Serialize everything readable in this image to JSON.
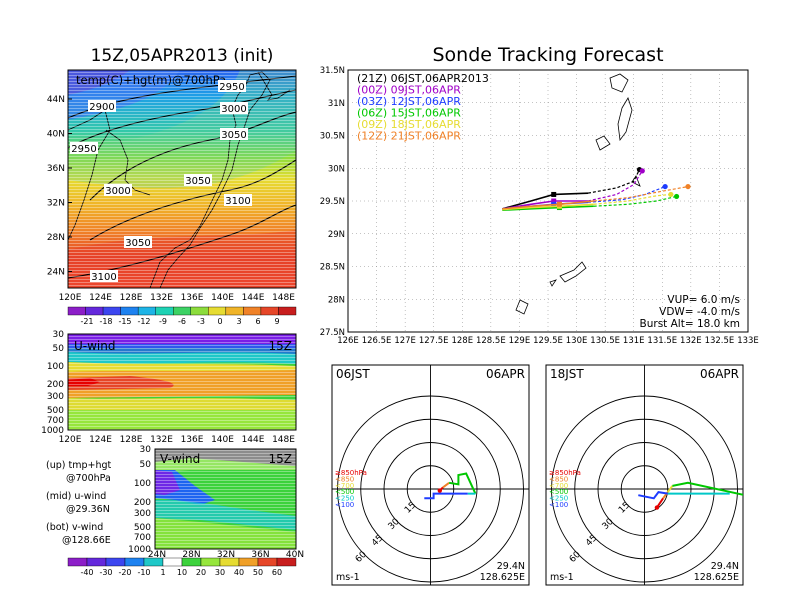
{
  "main_title": "Sonde Tracking Forecast",
  "init_title": "15Z,05APR2013 (init)",
  "colors": {
    "purple": "#a000c8",
    "blue": "#1e3cff",
    "green": "#00c800",
    "yellow": "#e6dc32",
    "orange": "#f08228",
    "black": "#000000",
    "cyan": "#00c8c8",
    "red": "#e60000"
  },
  "map700": {
    "label": "temp(C)+hgt(m)@700hPa",
    "lat_ticks": [
      "44N",
      "40N",
      "36N",
      "32N",
      "28N",
      "24N"
    ],
    "lon_ticks": [
      "120E",
      "124E",
      "128E",
      "132E",
      "136E",
      "140E",
      "144E",
      "148E"
    ],
    "contour_labels": [
      "2900",
      "2950",
      "3000",
      "3050",
      "2950",
      "3000",
      "3050",
      "3100",
      "3050",
      "3100"
    ],
    "colorbar": [
      "-21",
      "-18",
      "-15",
      "-12",
      "-9",
      "-6",
      "-3",
      "0",
      "3",
      "6",
      "9"
    ]
  },
  "uwind": {
    "label": "U-wind",
    "time": "15Z",
    "y_ticks": [
      "30",
      "50",
      "100",
      "200",
      "300",
      "500",
      "700",
      "1000"
    ],
    "x_ticks": [
      "120E",
      "124E",
      "128E",
      "132E",
      "136E",
      "140E",
      "144E",
      "148E"
    ]
  },
  "vwind": {
    "label": "V-wind",
    "time": "15Z",
    "y_ticks": [
      "30",
      "50",
      "100",
      "200",
      "300",
      "500",
      "700",
      "1000"
    ],
    "x_ticks": [
      "24N",
      "28N",
      "32N",
      "36N",
      "40N"
    ],
    "colorbar": [
      "-40",
      "-30",
      "-20",
      "-10",
      "1",
      "10",
      "20",
      "30",
      "40",
      "50",
      "60"
    ]
  },
  "notes": [
    {
      "l1": "(up) tmp+hgt",
      "l2": "@700hPa"
    },
    {
      "l1": "(mid) u-wind",
      "l2": "@29.36N"
    },
    {
      "l1": "(bot) v-wind",
      "l2": "@128.66E"
    }
  ],
  "chart_data": {
    "type": "line",
    "title": "Sonde Tracking Forecast",
    "xlim": [
      126,
      133
    ],
    "ylim": [
      27.5,
      31.5
    ],
    "x_ticks": [
      "126E",
      "126.5E",
      "127E",
      "127.5E",
      "128E",
      "128.5E",
      "129E",
      "129.5E",
      "130E",
      "130.5E",
      "131E",
      "131.5E",
      "132E",
      "132.5E",
      "133E"
    ],
    "y_ticks": [
      "27.5N",
      "28N",
      "28.5N",
      "29N",
      "29.5N",
      "30N",
      "30.5N",
      "31N",
      "31.5N"
    ],
    "series": [
      {
        "name": "(21Z)  06JST,06APR2013",
        "color": "#000000",
        "lon": [
          128.7,
          129.2,
          129.6,
          130.2,
          130.7,
          131.0,
          131.1
        ],
        "lat": [
          29.38,
          29.5,
          29.6,
          29.62,
          29.7,
          29.8,
          29.98
        ]
      },
      {
        "name": "(00Z)  09JST,06APR",
        "color": "#a000c8",
        "lon": [
          128.7,
          129.2,
          129.6,
          130.2,
          130.7,
          131.0,
          131.15
        ],
        "lat": [
          29.38,
          29.45,
          29.5,
          29.5,
          29.6,
          29.75,
          29.96
        ]
      },
      {
        "name": "(03Z)  12JST,06APR",
        "color": "#1e3cff",
        "lon": [
          128.7,
          129.2,
          129.6,
          130.2,
          130.8,
          131.2,
          131.55
        ],
        "lat": [
          29.38,
          29.42,
          29.45,
          29.48,
          29.52,
          29.6,
          29.72
        ]
      },
      {
        "name": "(06Z)  15JST,06APR",
        "color": "#00c800",
        "lon": [
          128.7,
          129.2,
          129.7,
          130.3,
          130.9,
          131.4,
          131.75
        ],
        "lat": [
          29.36,
          29.38,
          29.4,
          29.42,
          29.45,
          29.5,
          29.57
        ]
      },
      {
        "name": "(09Z)  18JST,06APR",
        "color": "#e6dc32",
        "lon": [
          128.7,
          129.2,
          129.7,
          130.3,
          130.9,
          131.4,
          131.65
        ],
        "lat": [
          29.37,
          29.4,
          29.42,
          29.45,
          29.5,
          29.58,
          29.6
        ]
      },
      {
        "name": "(12Z)  21JST,06APR",
        "color": "#f08228",
        "lon": [
          128.7,
          129.2,
          129.7,
          130.3,
          130.9,
          131.5,
          131.95
        ],
        "lat": [
          29.38,
          29.42,
          29.45,
          29.5,
          29.55,
          29.65,
          29.72
        ]
      }
    ],
    "annotations": [
      "VUP=  6.0 m/s",
      "VDW= -4.0 m/s",
      "Burst Alt= 18.0 km"
    ]
  },
  "hodographs": [
    {
      "time": "06JST",
      "date": "06APR",
      "lat": "29.4N",
      "lon": "128.625E",
      "unit": "ms-1",
      "ring_labels": [
        "15",
        "30",
        "45",
        "60"
      ],
      "legend": [
        "≥850hPa",
        "<850",
        "<700",
        "<500",
        "<250",
        "<100"
      ],
      "legend_colors": [
        "#e60000",
        "#f08228",
        "#e6dc32",
        "#00c800",
        "#00c8c8",
        "#1e3cff"
      ],
      "segments": [
        {
          "color": "#e60000",
          "pts": [
            [
              6,
              -1
            ],
            [
              8,
              1
            ]
          ]
        },
        {
          "color": "#f08228",
          "pts": [
            [
              8,
              1
            ],
            [
              12,
              4
            ]
          ]
        },
        {
          "color": "#00c800",
          "pts": [
            [
              12,
              4
            ],
            [
              18,
              3
            ],
            [
              18,
              9
            ],
            [
              23,
              10
            ],
            [
              29,
              -3
            ]
          ]
        },
        {
          "color": "#00c8c8",
          "pts": [
            [
              29,
              -3
            ],
            [
              24,
              -3
            ]
          ]
        },
        {
          "color": "#1e3cff",
          "pts": [
            [
              24,
              -3
            ],
            [
              2,
              -3
            ],
            [
              2,
              -6
            ],
            [
              -4,
              -6
            ]
          ]
        }
      ]
    },
    {
      "time": "18JST",
      "date": "06APR",
      "lat": "29.4N",
      "lon": "128.625E",
      "unit": "ms-1",
      "ring_labels": [
        "15",
        "30",
        "45",
        "60"
      ],
      "legend": [
        "≥850hPa",
        "<850",
        "<700",
        "<500",
        "<250",
        "<100"
      ],
      "legend_colors": [
        "#e60000",
        "#f08228",
        "#e6dc32",
        "#00c800",
        "#00c8c8",
        "#1e3cff"
      ],
      "segments": [
        {
          "color": "#e60000",
          "pts": [
            [
              8,
              -12
            ],
            [
              12,
              -6
            ]
          ]
        },
        {
          "color": "#f08228",
          "pts": [
            [
              12,
              -6
            ],
            [
              15,
              -2
            ]
          ]
        },
        {
          "color": "#e6dc32",
          "pts": [
            [
              15,
              -2
            ],
            [
              18,
              2
            ]
          ]
        },
        {
          "color": "#00c800",
          "pts": [
            [
              18,
              2
            ],
            [
              28,
              4
            ],
            [
              65,
              -4
            ]
          ]
        },
        {
          "color": "#00c8c8",
          "pts": [
            [
              55,
              -3
            ],
            [
              15,
              -3
            ]
          ]
        },
        {
          "color": "#1e3cff",
          "pts": [
            [
              15,
              -3
            ],
            [
              9,
              -2
            ],
            [
              6,
              -6
            ],
            [
              -4,
              -4
            ]
          ]
        }
      ]
    }
  ]
}
